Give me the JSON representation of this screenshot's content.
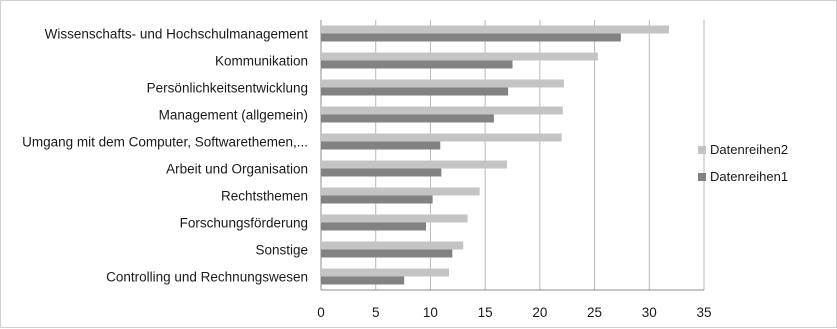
{
  "chart_data": {
    "type": "bar",
    "orientation": "horizontal",
    "title": "",
    "xlabel": "",
    "ylabel": "",
    "categories": [
      "Wissenschafts- und Hochschulmanagement",
      "Kommunikation",
      "Persönlichkeitsentwicklung",
      "Management (allgemein)",
      "Umgang mit dem Computer, Softwarethemen,...",
      "Arbeit und Organisation",
      "Rechtsthemen",
      "Forschungsförderung",
      "Sonstige",
      "Controlling und Rechnungswesen"
    ],
    "series": [
      {
        "name": "Datenreihen2",
        "color": "#c4c4c4",
        "values": [
          31.8,
          25.3,
          22.2,
          22.1,
          22.0,
          17.0,
          14.5,
          13.4,
          13.0,
          11.7
        ]
      },
      {
        "name": "Datenreihen1",
        "color": "#828282",
        "values": [
          27.4,
          17.5,
          17.1,
          15.8,
          10.9,
          11.0,
          10.2,
          9.6,
          12.0,
          7.6
        ]
      }
    ],
    "xlim": [
      0,
      35
    ],
    "xticks": [
      "0",
      "5",
      "10",
      "15",
      "20",
      "25",
      "30",
      "35"
    ],
    "grid": true,
    "legend_position": "right"
  }
}
